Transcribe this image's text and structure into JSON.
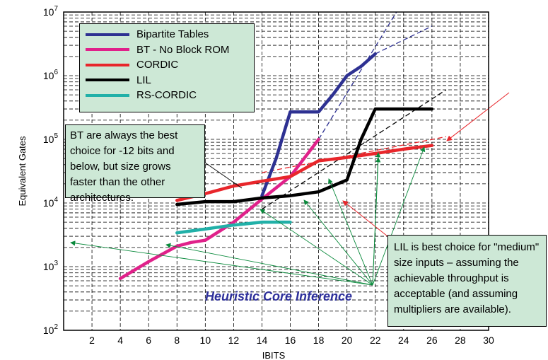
{
  "chart_data": {
    "type": "line",
    "xlabel": "IBITS",
    "ylabel": "Equivalent Gates",
    "xlim": [
      0,
      30
    ],
    "xticks": [
      2,
      4,
      6,
      8,
      10,
      12,
      14,
      16,
      18,
      20,
      22,
      24,
      26,
      28,
      30
    ],
    "yscale": "log",
    "ylim": [
      100,
      10000000
    ],
    "yticks": [
      {
        "value": 100,
        "base": "10",
        "exp": "2"
      },
      {
        "value": 1000,
        "base": "10",
        "exp": "3"
      },
      {
        "value": 10000,
        "base": "10",
        "exp": "4"
      },
      {
        "value": 100000,
        "base": "10",
        "exp": "5"
      },
      {
        "value": 1000000,
        "base": "10",
        "exp": "6"
      },
      {
        "value": 10000000,
        "base": "10",
        "exp": "7"
      }
    ],
    "grid": true,
    "legend_position": "top-left",
    "series": [
      {
        "name": "Bipartite Tables",
        "color": "#2e3192",
        "x": [
          14,
          15,
          16,
          17,
          18,
          19,
          20,
          21,
          22
        ],
        "y": [
          13000,
          50000,
          270000,
          270000,
          270000,
          500000,
          1000000,
          1400000,
          2200000
        ]
      },
      {
        "name": "BT - No Block ROM",
        "color": "#e0218a",
        "x": [
          4,
          6,
          8,
          9,
          10,
          12,
          14,
          16,
          18
        ],
        "y": [
          650,
          1200,
          2100,
          2400,
          2600,
          5000,
          11500,
          26000,
          100000
        ]
      },
      {
        "name": "CORDIC",
        "color": "#e8262b",
        "x": [
          8,
          10,
          12,
          14,
          16,
          18,
          20,
          22,
          24,
          26
        ],
        "y": [
          11000,
          14000,
          18500,
          22000,
          26000,
          46000,
          52000,
          60000,
          70000,
          80000
        ]
      },
      {
        "name": "LIL",
        "color": "#000000",
        "x": [
          8,
          10,
          12,
          14,
          16,
          18,
          20,
          21,
          22,
          24,
          26
        ],
        "y": [
          9500,
          10500,
          10500,
          12000,
          13000,
          15000,
          23000,
          100000,
          300000,
          300000,
          300000
        ]
      },
      {
        "name": "RS-CORDIC",
        "color": "#21b0a8",
        "x": [
          8,
          10,
          12,
          14,
          16
        ],
        "y": [
          3400,
          3900,
          4500,
          5000,
          5000
        ]
      }
    ],
    "extrapolations": [
      {
        "series": "Bipartite Tables",
        "color": "#2e3192",
        "x": [
          18,
          23.5
        ],
        "y": [
          100000,
          10000000
        ]
      },
      {
        "series": "Bipartite Tables",
        "color": "#2e3192",
        "x": [
          22,
          26
        ],
        "y": [
          2200000,
          6000000
        ]
      },
      {
        "series": "CORDIC",
        "color": "#e8262b",
        "x": [
          14,
          27
        ],
        "y": [
          30000,
          110000
        ]
      },
      {
        "series": "LIL",
        "color": "#000000",
        "x": [
          14,
          27
        ],
        "y": [
          8000,
          600000
        ]
      }
    ],
    "annotations": [
      {
        "text": "Heuristic Core Inference",
        "color": "#2d2f9a"
      }
    ]
  },
  "legend_title_hidden": "",
  "notes": {
    "bt": "BT are always the best choice for -12 bits and below, but size grows faster than the other architectures.",
    "lil": "LIL is best choice for \"medium\" size inputs – assuming the achievable throughput is acceptable (and assuming multipliers are available)."
  },
  "heuristic_label": "Heuristic Core Inference"
}
